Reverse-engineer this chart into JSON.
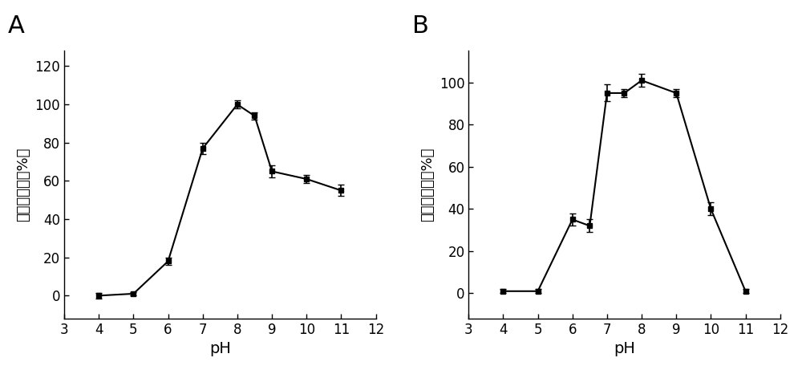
{
  "panel_A": {
    "x": [
      4,
      5,
      6,
      7,
      8,
      8.5,
      9,
      10,
      11
    ],
    "y": [
      0,
      1,
      18,
      77,
      100,
      94,
      65,
      61,
      55
    ],
    "yerr": [
      1.5,
      1,
      2,
      3,
      2,
      2,
      3,
      2,
      3
    ],
    "xlabel": "pH",
    "ylabel": "相对酶活力（%）",
    "xlim": [
      3,
      12
    ],
    "ylim": [
      -12,
      128
    ],
    "xticks": [
      3,
      4,
      5,
      6,
      7,
      8,
      9,
      10,
      11,
      12
    ],
    "yticks": [
      0,
      20,
      40,
      60,
      80,
      100,
      120
    ]
  },
  "panel_B": {
    "x": [
      4,
      5,
      6,
      6.5,
      7,
      7.5,
      8,
      9,
      10,
      11
    ],
    "y": [
      1,
      1,
      35,
      32,
      95,
      95,
      101,
      95,
      40,
      1
    ],
    "yerr": [
      1,
      1,
      3,
      3,
      4,
      2,
      3,
      2,
      3,
      1
    ],
    "xlabel": "pH",
    "ylabel": "相对酶活力（%）",
    "xlim": [
      3,
      12
    ],
    "ylim": [
      -12,
      115
    ],
    "xticks": [
      3,
      4,
      5,
      6,
      7,
      8,
      9,
      10,
      11,
      12
    ],
    "yticks": [
      0,
      20,
      40,
      60,
      80,
      100
    ]
  },
  "panel_labels": [
    "A",
    "B"
  ],
  "line_color": "#000000",
  "marker": "s",
  "markersize": 5,
  "linewidth": 1.5,
  "capsize": 3,
  "elinewidth": 1.2,
  "xlabel_fontsize": 14,
  "ylabel_fontsize": 13,
  "tick_fontsize": 12,
  "panel_label_fontsize": 22,
  "bg_color": "#ffffff"
}
